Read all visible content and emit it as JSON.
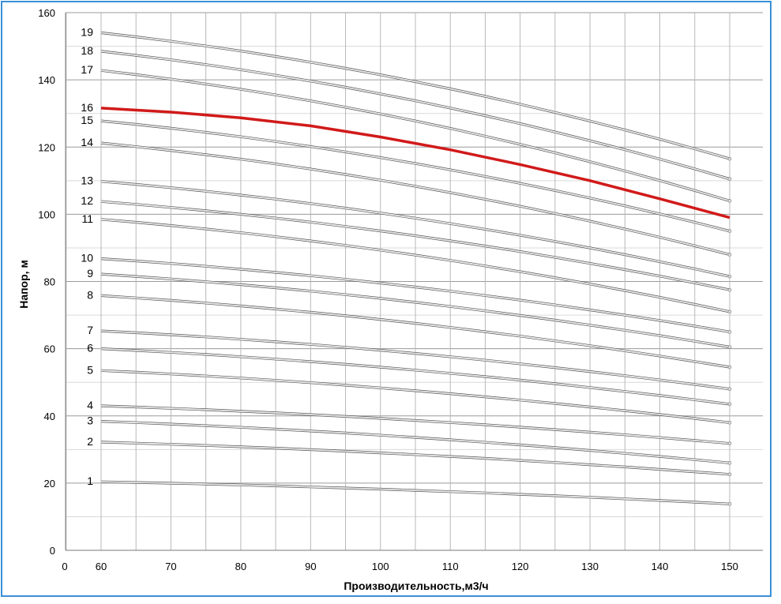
{
  "chart_data": {
    "type": "line",
    "title": "",
    "xlabel": "Производительность,м3/ч",
    "ylabel": "Напор, м",
    "xlim": [
      60,
      150
    ],
    "ylim": [
      0,
      160
    ],
    "x_ticks": [
      "0",
      "60",
      "70",
      "80",
      "90",
      "100",
      "110",
      "120",
      "130",
      "140",
      "150"
    ],
    "y_ticks": [
      "0",
      "20",
      "40",
      "60",
      "80",
      "100",
      "120",
      "140",
      "160"
    ],
    "grid": true,
    "legend": "none",
    "highlight_series": "16",
    "highlight_color": "#d11a1a",
    "curve_color": "#b9b9b9",
    "series": [
      {
        "name": "1",
        "x": [
          60,
          150
        ],
        "y": [
          20.4,
          13.8
        ]
      },
      {
        "name": "2",
        "x": [
          60,
          150
        ],
        "y": [
          32.2,
          22.6
        ]
      },
      {
        "name": "3",
        "x": [
          60,
          150
        ],
        "y": [
          38.4,
          26.0
        ]
      },
      {
        "name": "4",
        "x": [
          60,
          150
        ],
        "y": [
          43.0,
          31.8
        ]
      },
      {
        "name": "5",
        "x": [
          60,
          150
        ],
        "y": [
          53.5,
          38.0
        ]
      },
      {
        "name": "6",
        "x": [
          60,
          150
        ],
        "y": [
          60.0,
          43.5
        ]
      },
      {
        "name": "7",
        "x": [
          60,
          150
        ],
        "y": [
          65.3,
          48.0
        ]
      },
      {
        "name": "8",
        "x": [
          60,
          150
        ],
        "y": [
          75.8,
          54.5
        ]
      },
      {
        "name": "9",
        "x": [
          60,
          150
        ],
        "y": [
          82.2,
          60.5
        ]
      },
      {
        "name": "10",
        "x": [
          60,
          150
        ],
        "y": [
          86.8,
          65.0
        ]
      },
      {
        "name": "11",
        "x": [
          60,
          150
        ],
        "y": [
          98.5,
          71.0
        ]
      },
      {
        "name": "12",
        "x": [
          60,
          150
        ],
        "y": [
          103.8,
          77.5
        ]
      },
      {
        "name": "13",
        "x": [
          60,
          150
        ],
        "y": [
          109.8,
          81.5
        ]
      },
      {
        "name": "14",
        "x": [
          60,
          150
        ],
        "y": [
          121.2,
          88.0
        ]
      },
      {
        "name": "15",
        "x": [
          60,
          150
        ],
        "y": [
          127.8,
          95.0
        ]
      },
      {
        "name": "16",
        "x": [
          60,
          70,
          80,
          90,
          100,
          110,
          120,
          130,
          140,
          150
        ],
        "y": [
          131.6,
          130.4,
          128.7,
          126.3,
          123.0,
          119.2,
          114.8,
          110.0,
          104.6,
          99.0
        ]
      },
      {
        "name": "17",
        "x": [
          60,
          150
        ],
        "y": [
          142.8,
          104.0
        ]
      },
      {
        "name": "18",
        "x": [
          60,
          150
        ],
        "y": [
          148.5,
          110.5
        ]
      },
      {
        "name": "19",
        "x": [
          60,
          150
        ],
        "y": [
          154.0,
          116.5
        ]
      }
    ]
  }
}
